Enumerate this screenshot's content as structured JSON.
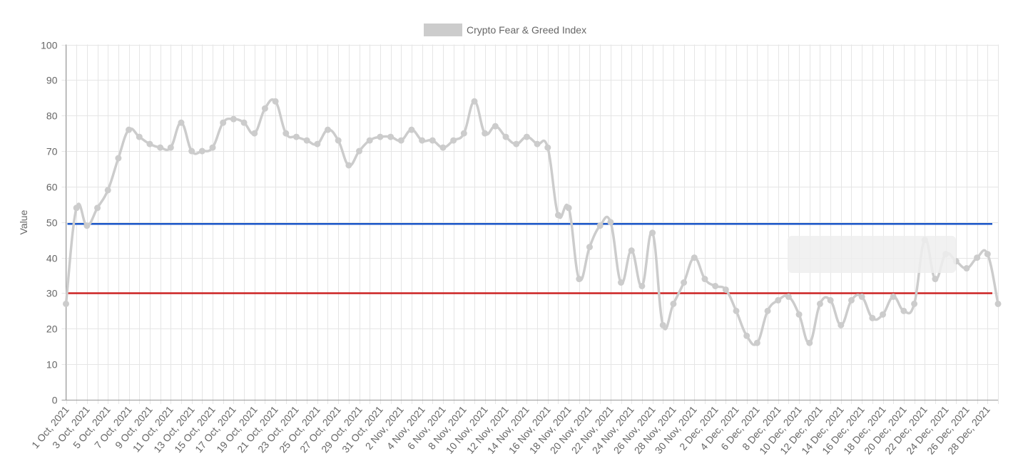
{
  "chart_data": {
    "type": "line",
    "ylabel": "Value",
    "ylim": [
      0,
      100
    ],
    "yticks": [
      0,
      10,
      20,
      30,
      40,
      50,
      60,
      70,
      80,
      90,
      100
    ],
    "grid": true,
    "legend_position": "top-center",
    "x": [
      "1 Oct, 2021",
      "2 Oct, 2021",
      "3 Oct, 2021",
      "4 Oct, 2021",
      "5 Oct, 2021",
      "6 Oct, 2021",
      "7 Oct, 2021",
      "8 Oct, 2021",
      "9 Oct, 2021",
      "10 Oct, 2021",
      "11 Oct, 2021",
      "12 Oct, 2021",
      "13 Oct, 2021",
      "14 Oct, 2021",
      "15 Oct, 2021",
      "16 Oct, 2021",
      "17 Oct, 2021",
      "18 Oct, 2021",
      "19 Oct, 2021",
      "20 Oct, 2021",
      "21 Oct, 2021",
      "22 Oct, 2021",
      "23 Oct, 2021",
      "24 Oct, 2021",
      "25 Oct, 2021",
      "26 Oct, 2021",
      "27 Oct, 2021",
      "28 Oct, 2021",
      "29 Oct, 2021",
      "30 Oct, 2021",
      "31 Oct, 2021",
      "1 Nov, 2021",
      "2 Nov, 2021",
      "3 Nov, 2021",
      "4 Nov, 2021",
      "5 Nov, 2021",
      "6 Nov, 2021",
      "7 Nov, 2021",
      "8 Nov, 2021",
      "9 Nov, 2021",
      "10 Nov, 2021",
      "11 Nov, 2021",
      "12 Nov, 2021",
      "13 Nov, 2021",
      "14 Nov, 2021",
      "15 Nov, 2021",
      "16 Nov, 2021",
      "17 Nov, 2021",
      "18 Nov, 2021",
      "19 Nov, 2021",
      "20 Nov, 2021",
      "21 Nov, 2021",
      "22 Nov, 2021",
      "23 Nov, 2021",
      "24 Nov, 2021",
      "25 Nov, 2021",
      "26 Nov, 2021",
      "27 Nov, 2021",
      "28 Nov, 2021",
      "29 Nov, 2021",
      "30 Nov, 2021",
      "1 Dec, 2021",
      "2 Dec, 2021",
      "3 Dec, 2021",
      "4 Dec, 2021",
      "5 Dec, 2021",
      "6 Dec, 2021",
      "7 Dec, 2021",
      "8 Dec, 2021",
      "9 Dec, 2021",
      "10 Dec, 2021",
      "11 Dec, 2021",
      "12 Dec, 2021",
      "13 Dec, 2021",
      "14 Dec, 2021",
      "15 Dec, 2021",
      "16 Dec, 2021",
      "17 Dec, 2021",
      "18 Dec, 2021",
      "19 Dec, 2021",
      "20 Dec, 2021",
      "21 Dec, 2021",
      "22 Dec, 2021",
      "23 Dec, 2021",
      "24 Dec, 2021",
      "25 Dec, 2021",
      "26 Dec, 2021",
      "27 Dec, 2021",
      "28 Dec, 2021",
      "29 Dec, 2021"
    ],
    "series": [
      {
        "name": "Crypto Fear & Greed Index",
        "color": "#cccccc",
        "values": [
          27,
          54,
          49,
          54,
          59,
          68,
          76,
          74,
          72,
          71,
          71,
          78,
          70,
          70,
          71,
          78,
          79,
          78,
          75,
          82,
          84,
          75,
          74,
          73,
          72,
          76,
          73,
          66,
          70,
          73,
          74,
          74,
          73,
          76,
          73,
          73,
          71,
          73,
          75,
          84,
          75,
          77,
          74,
          72,
          74,
          72,
          71,
          52,
          54,
          34,
          43,
          49,
          50,
          33,
          42,
          32,
          47,
          21,
          27,
          33,
          40,
          34,
          32,
          31,
          25,
          18,
          16,
          25,
          28,
          29,
          24,
          16,
          27,
          28,
          21,
          28,
          29,
          23,
          24,
          29,
          25,
          27,
          45,
          34,
          41,
          39,
          37,
          40,
          41,
          27
        ]
      }
    ],
    "reference_lines": [
      {
        "value": 49.5,
        "color": "#1a56c8"
      },
      {
        "value": 30,
        "color": "#cc2222"
      }
    ],
    "colors": {
      "grid": "#e5e5e5",
      "axis": "#999999",
      "tick_text": "#666666",
      "line": "#cccccc",
      "tooltip_bg": "#eeeeee"
    }
  }
}
